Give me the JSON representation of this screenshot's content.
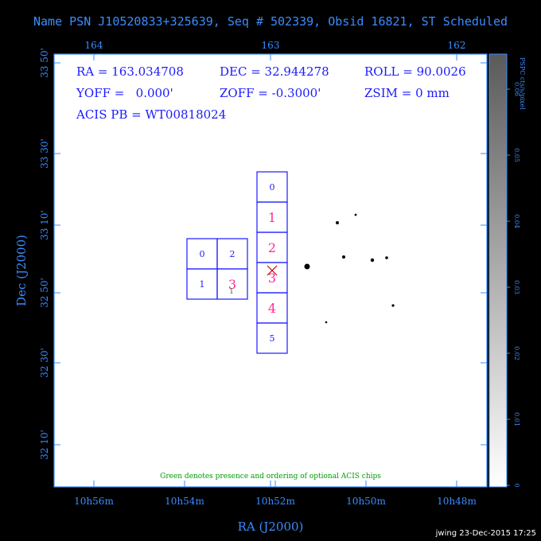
{
  "header": {
    "title": "Name PSN J10520833+325639, Seq # 502339, Obsid 16821, ST Scheduled"
  },
  "info": {
    "ra": "RA = 163.034708",
    "dec": "DEC = 32.944278",
    "roll": "ROLL = 90.0026",
    "yoff": "YOFF =   0.000'",
    "zoff": "ZOFF = -0.3000'",
    "zsim": "ZSIM = 0 mm",
    "acis_pb": "ACIS PB = WT00818024"
  },
  "axes": {
    "top_ticks": [
      "164",
      "163",
      "162"
    ],
    "left_ticks": [
      "33 50'",
      "33 30'",
      "33 10'",
      "32 50'",
      "32 30'",
      "32 10'"
    ],
    "bottom_ticks": [
      "10h56m",
      "10h54m",
      "10h52m",
      "10h50m",
      "10h48m"
    ],
    "xlabel": "RA (J2000)",
    "ylabel": "Dec (J2000)"
  },
  "colorbar": {
    "label": "PSPC cts/s/pixel",
    "ticks": [
      "0",
      "0.01",
      "0.02",
      "0.03",
      "0.04",
      "0.05",
      "0.06"
    ]
  },
  "chips": {
    "aci_i": [
      {
        "label": "0",
        "color": "#1a1aff"
      },
      {
        "label": "2",
        "color": "#1a1aff"
      },
      {
        "label": "1",
        "color": "#1a1aff"
      },
      {
        "label": "3",
        "color": "#ff2a9a"
      }
    ],
    "aci_i_optional": "1",
    "aci_s": [
      {
        "label": "0",
        "color": "#1a1aff"
      },
      {
        "label": "1",
        "color": "#ff2a9a"
      },
      {
        "label": "2",
        "color": "#ff2a9a"
      },
      {
        "label": "3",
        "color": "#ff2a9a"
      },
      {
        "label": "4",
        "color": "#ff2a9a"
      },
      {
        "label": "5",
        "color": "#1a1aff"
      }
    ]
  },
  "note": "Green denotes presence and ordering of optional ACIS chips",
  "footer": {
    "signature": "jwing 23-Dec-2015 17:25"
  },
  "colors": {
    "axis": "#3a8cff",
    "chip_outline": "#1a1aff",
    "chip_active": "#ff2a9a",
    "optional": "#009900",
    "target_marker": "#cc0000"
  }
}
